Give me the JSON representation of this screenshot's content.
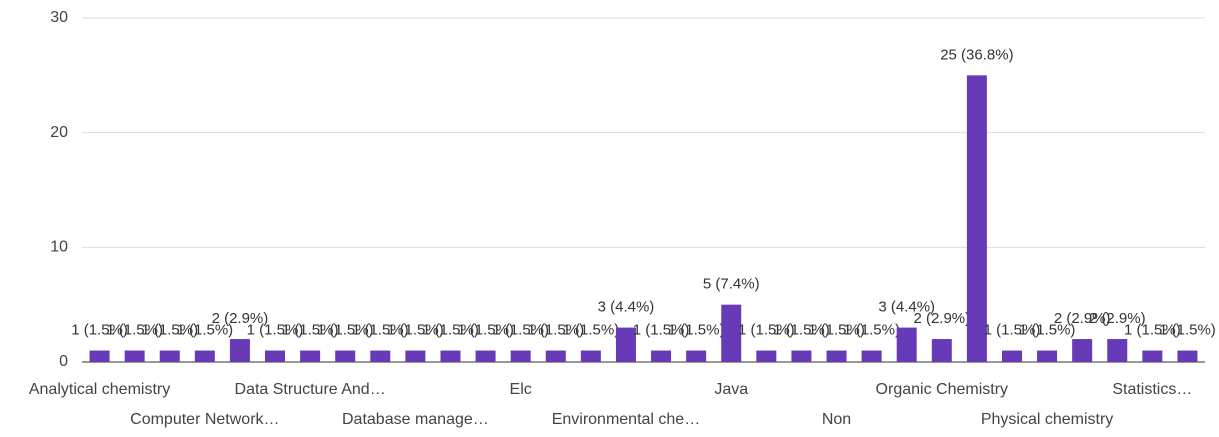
{
  "chart_data": {
    "type": "bar",
    "color": "#673ab7",
    "categories": [
      "Analytical chemistry",
      null,
      null,
      "Computer Network…",
      null,
      null,
      "Data Structure And…",
      null,
      null,
      "Database manage…",
      null,
      null,
      "Elc",
      null,
      null,
      "Environmental che…",
      null,
      null,
      "Java",
      null,
      null,
      "Non",
      null,
      null,
      "Organic Chemistry",
      null,
      null,
      "Physical chemistry",
      null,
      null,
      "Statistics…",
      null
    ],
    "values": [
      1,
      1,
      1,
      1,
      2,
      1,
      1,
      1,
      1,
      1,
      1,
      1,
      1,
      1,
      1,
      3,
      1,
      1,
      5,
      1,
      1,
      1,
      1,
      3,
      2,
      25,
      1,
      1,
      2,
      2,
      1,
      1
    ],
    "value_labels": [
      "1 (1.5%)",
      "1 (1.5%)",
      "1 (1.5%)",
      "1 (1.5%)",
      "2 (2.9%)",
      "1 (1.5%)",
      "1 (1.5%)",
      "1 (1.5%)",
      "1 (1.5%)",
      "1 (1.5%)",
      "1 (1.5%)",
      "1 (1.5%)",
      "1 (1.5%)",
      "1 (1.5%)",
      "1 (1.5%)",
      "3 (4.4%)",
      "1 (1.5%)",
      "1 (1.5%)",
      "5 (7.4%)",
      "1 (1.5%)",
      "1 (1.5%)",
      "1 (1.5%)",
      "1 (1.5%)",
      "3 (4.4%)",
      "2 (2.9%)",
      "25 (36.8%)",
      "1 (1.5%)",
      "1 (1.5%)",
      "2 (2.9%)",
      "2 (2.9%)",
      "1 (1.5%)",
      "1 (1.5%)"
    ],
    "ylim": [
      0,
      30
    ],
    "yticks": [
      0,
      10,
      20,
      30
    ],
    "grid": true
  }
}
